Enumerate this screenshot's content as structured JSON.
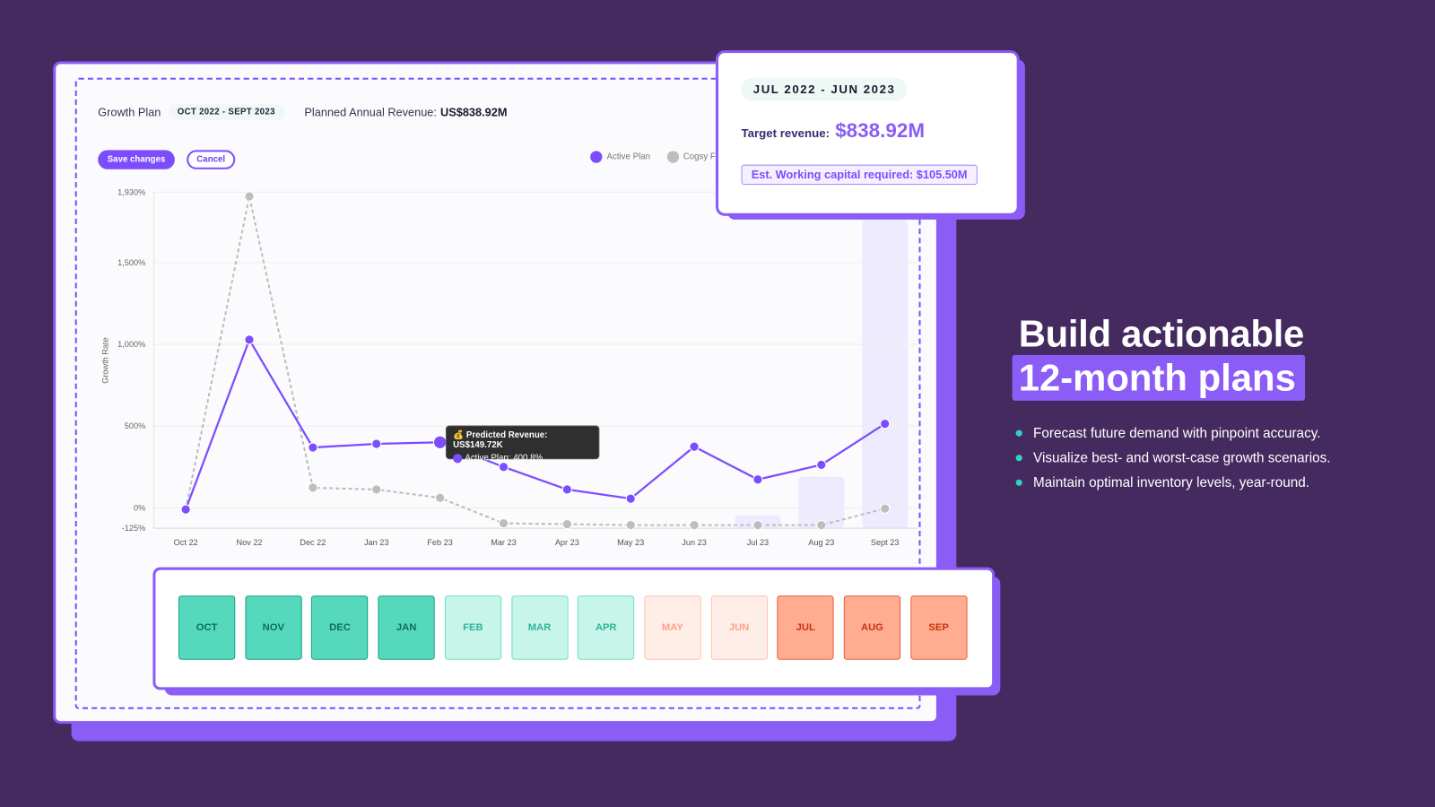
{
  "header": {
    "title": "Growth Plan",
    "period": "OCT 2022 - SEPT 2023",
    "revenue_label": "Planned Annual Revenue:",
    "revenue_value": "US$838.92M"
  },
  "buttons": {
    "save": "Save changes",
    "cancel": "Cancel"
  },
  "colors": {
    "accent": "#7c4dff",
    "background": "#452a5f",
    "secondary_series": "#bdbdbd",
    "bullet": "#2dd4bf"
  },
  "chart_data": {
    "type": "line",
    "ylabel": "Growth Rate",
    "ylim": [
      -125,
      1930
    ],
    "y_ticks": [
      "1,930%",
      "1,500%",
      "1,000%",
      "500%",
      "0%",
      "-125%"
    ],
    "y_tick_values": [
      1930,
      1500,
      1000,
      500,
      0,
      -125
    ],
    "categories": [
      "Oct 22",
      "Nov 22",
      "Dec 22",
      "Jan 23",
      "Feb 23",
      "Mar 23",
      "Apr 23",
      "May 23",
      "Jun 23",
      "Jul 23",
      "Aug 23",
      "Sept 23"
    ],
    "grid": true,
    "legend_position": "top-right",
    "series": [
      {
        "name": "Active Plan",
        "color": "#7c4dff",
        "style": "solid",
        "values": [
          -10,
          1028,
          369,
          391,
          400.8,
          250,
          112,
          56,
          374,
          173,
          263,
          514
        ]
      },
      {
        "name": "Cogsy F",
        "color": "#bdbdbd",
        "style": "dashed",
        "values": [
          -10,
          1905,
          123,
          112,
          61,
          -95,
          -100,
          -106,
          -106,
          -106,
          -106,
          -5
        ]
      }
    ],
    "column_highlights": {
      "Jul 23": -45,
      "Aug 23": 190,
      "Sept 23": 1760
    },
    "tooltip": {
      "icon": "money-bag-icon",
      "title": "Predicted Revenue: US$149.72K",
      "line": "Active Plan: 400.8%"
    }
  },
  "card": {
    "range": "JUL 2022 - JUN 2023",
    "target_label": "Target revenue:",
    "target_value": "$838.92M",
    "working_capital": "Est. Working capital required: $105.50M"
  },
  "months": [
    {
      "label": "OCT",
      "bg": "#56d8bd",
      "border": "#12a383",
      "color": "#0b6e57"
    },
    {
      "label": "NOV",
      "bg": "#56d8bd",
      "border": "#12a383",
      "color": "#0b6e57"
    },
    {
      "label": "DEC",
      "bg": "#56d8bd",
      "border": "#12a383",
      "color": "#0b6e57"
    },
    {
      "label": "JAN",
      "bg": "#56d8bd",
      "border": "#12a383",
      "color": "#0b6e57"
    },
    {
      "label": "FEB",
      "bg": "#c8f5ea",
      "border": "#6ee0c6",
      "color": "#2bb596"
    },
    {
      "label": "MAR",
      "bg": "#c8f5ea",
      "border": "#6ee0c6",
      "color": "#2bb596"
    },
    {
      "label": "APR",
      "bg": "#c8f5ea",
      "border": "#6ee0c6",
      "color": "#2bb596"
    },
    {
      "label": "MAY",
      "bg": "#ffeee8",
      "border": "#ffbfae",
      "color": "#ff9f87"
    },
    {
      "label": "JUN",
      "bg": "#ffeee8",
      "border": "#ffbfae",
      "color": "#ff9f87"
    },
    {
      "label": "JUL",
      "bg": "#ffac90",
      "border": "#e5603c",
      "color": "#c8350f"
    },
    {
      "label": "AUG",
      "bg": "#ffac90",
      "border": "#e5603c",
      "color": "#c8350f"
    },
    {
      "label": "SEP",
      "bg": "#ffac90",
      "border": "#e5603c",
      "color": "#c8350f"
    }
  ],
  "marketing": {
    "headline_1": "Build actionable",
    "headline_2": "12-month plans",
    "bullets": [
      "Forecast future demand with pinpoint accuracy.",
      "Visualize best- and worst-case growth scenarios.",
      "Maintain optimal inventory levels, year-round."
    ]
  }
}
